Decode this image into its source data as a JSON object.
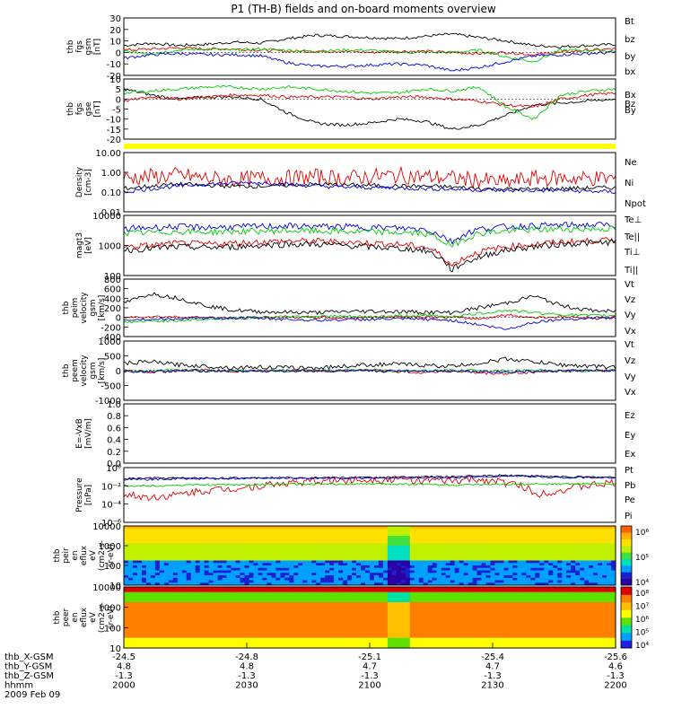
{
  "title": "P1  (TH-B) fields and on-board moments overview",
  "colors": {
    "black": "#000000",
    "red": "#e00000",
    "green": "#00cc00",
    "blue": "#0000e0",
    "yellow": "#ffff00"
  },
  "chart_data": [
    {
      "type": "line",
      "id": "fgs_gsm",
      "ylabel": [
        "thb",
        "fgs",
        "gsm",
        "[nT]"
      ],
      "ylim": [
        -20,
        30
      ],
      "yticks": [
        "30",
        "20",
        "10",
        "0",
        "-10",
        "-20"
      ],
      "series": [
        {
          "name": "Bt",
          "color": "#000000",
          "values": [
            6,
            8,
            6,
            7,
            9,
            8,
            12,
            15,
            14,
            13,
            12,
            14,
            16,
            13,
            10,
            6,
            5,
            6,
            7
          ]
        },
        {
          "name": "bz",
          "color": "#e00000",
          "values": [
            2,
            3,
            4,
            3,
            3,
            2,
            1,
            1,
            1,
            0,
            1,
            1,
            0,
            -1,
            0,
            -2,
            0,
            2,
            3
          ]
        },
        {
          "name": "by",
          "color": "#00cc00",
          "values": [
            1,
            -1,
            2,
            3,
            2,
            3,
            2,
            1,
            2,
            2,
            0,
            0,
            0,
            2,
            -4,
            -8,
            2,
            2,
            1
          ]
        },
        {
          "name": "bx",
          "color": "#0000e0",
          "values": [
            -5,
            -2,
            -1,
            -2,
            -2,
            -3,
            -9,
            -12,
            -12,
            -11,
            -10,
            -11,
            -16,
            -13,
            -8,
            -3,
            -2,
            -1,
            0
          ]
        }
      ]
    },
    {
      "type": "line",
      "id": "fgs_gse",
      "ylabel": [
        "thb",
        "fgs",
        "gse",
        "[nT]"
      ],
      "ylim": [
        -20,
        10
      ],
      "yticks": [
        "10",
        "5",
        "0",
        "-5",
        "-10",
        "-15",
        "-20"
      ],
      "series": [
        {
          "name": "Bx",
          "color": "#000000",
          "values": [
            5,
            2,
            0,
            1,
            1,
            0,
            -7,
            -12,
            -13,
            -12,
            -10,
            -11,
            -15,
            -13,
            -8,
            -3,
            -2,
            -1,
            0
          ]
        },
        {
          "name": "Bz",
          "color": "#e00000",
          "values": [
            -1,
            1,
            0,
            1,
            2,
            2,
            1,
            1,
            1,
            0,
            1,
            1,
            0,
            -1,
            -3,
            -4,
            0,
            2,
            3
          ]
        },
        {
          "name": "By",
          "color": "#00cc00",
          "values": [
            3,
            4,
            5,
            6,
            6,
            5,
            6,
            5,
            4,
            3,
            3,
            5,
            4,
            6,
            -4,
            -10,
            2,
            4,
            5
          ]
        }
      ]
    },
    {
      "type": "line",
      "id": "density",
      "ylabel": [
        "Density",
        "[cm-3]"
      ],
      "ylim": [
        0.01,
        10
      ],
      "scale": "log",
      "yticks": [
        "10.00",
        "1.00",
        "0.10",
        "0.01"
      ],
      "series": [
        {
          "name": "Ne",
          "color": "#e00000",
          "values": [
            0.5,
            0.6,
            0.7,
            0.5,
            0.4,
            0.5,
            0.5,
            0.6,
            0.5,
            0.6,
            0.7,
            0.6,
            0.5,
            0.4,
            0.3,
            0.5,
            0.5,
            0.5,
            0.5
          ]
        },
        {
          "name": "Ni",
          "color": "#000000",
          "values": [
            0.15,
            0.2,
            0.25,
            0.22,
            0.2,
            0.2,
            0.22,
            0.25,
            0.23,
            0.22,
            0.2,
            0.2,
            0.18,
            0.15,
            0.14,
            0.14,
            0.15,
            0.16,
            0.17
          ]
        },
        {
          "name": "Npot",
          "color": "#0000e0",
          "values": [
            0.1,
            0.15,
            0.2,
            0.25,
            0.28,
            0.3,
            0.25,
            0.2,
            0.18,
            0.17,
            0.16,
            0.15,
            0.14,
            0.13,
            0.12,
            0.12,
            0.12,
            0.11,
            0.1
          ]
        }
      ]
    },
    {
      "type": "line",
      "id": "magt3",
      "ylabel": [
        "magt3",
        "[eV]"
      ],
      "ylim": [
        100,
        10000
      ],
      "scale": "log",
      "yticks": [
        "10000",
        "1000",
        "100"
      ],
      "series": [
        {
          "name": "Te⊥",
          "color": "#e00000",
          "values": [
            900,
            1000,
            1200,
            1100,
            1200,
            1300,
            1400,
            1400,
            1300,
            1200,
            1100,
            900,
            200,
            600,
            900,
            1100,
            1300,
            1400,
            1500
          ]
        },
        {
          "name": "Te||",
          "color": "#000000",
          "values": [
            700,
            800,
            900,
            850,
            900,
            1000,
            1100,
            1100,
            1000,
            900,
            800,
            700,
            150,
            400,
            700,
            900,
            1100,
            1200,
            1300
          ]
        },
        {
          "name": "Ti⊥",
          "color": "#0000e0",
          "values": [
            3500,
            4000,
            4200,
            4000,
            4100,
            4300,
            4400,
            4300,
            4200,
            4000,
            3800,
            3500,
            1300,
            3500,
            4200,
            4500,
            4700,
            4800,
            4800
          ]
        },
        {
          "name": "Ti||",
          "color": "#00cc00",
          "values": [
            2500,
            2700,
            2900,
            2800,
            2900,
            3000,
            3100,
            3000,
            2900,
            2800,
            2700,
            2500,
            900,
            2500,
            3000,
            3300,
            3500,
            3500,
            3600
          ]
        }
      ]
    },
    {
      "type": "line",
      "id": "peim_velocity",
      "ylabel": [
        "thb",
        "peim",
        "velocity",
        "gsm",
        "[km/s]"
      ],
      "ylim": [
        -400,
        800
      ],
      "yticks": [
        "800",
        "600",
        "400",
        "200",
        "0",
        "-200",
        "-400"
      ],
      "series": [
        {
          "name": "Vt",
          "color": "#000000",
          "values": [
            300,
            500,
            400,
            250,
            150,
            120,
            110,
            100,
            120,
            130,
            120,
            110,
            100,
            200,
            300,
            450,
            250,
            150,
            120
          ]
        },
        {
          "name": "Vz",
          "color": "#e00000",
          "values": [
            0,
            20,
            10,
            0,
            -20,
            0,
            10,
            0,
            -10,
            0,
            20,
            10,
            0,
            -30,
            50,
            0,
            10,
            0,
            0
          ]
        },
        {
          "name": "Vy",
          "color": "#00cc00",
          "values": [
            -100,
            -80,
            -60,
            -40,
            -20,
            0,
            20,
            30,
            20,
            10,
            30,
            40,
            20,
            80,
            150,
            100,
            60,
            40,
            40
          ]
        },
        {
          "name": "Vx",
          "color": "#0000e0",
          "values": [
            -50,
            -40,
            -30,
            -20,
            -10,
            -20,
            -40,
            -60,
            -50,
            -40,
            -30,
            -40,
            -60,
            -150,
            -250,
            -100,
            -40,
            -20,
            -10
          ]
        }
      ]
    },
    {
      "type": "line",
      "id": "peem_velocity",
      "ylabel": [
        "thb",
        "peem",
        "velocity",
        "gsm",
        "[km/s]"
      ],
      "ylim": [
        -1000,
        1000
      ],
      "yticks": [
        "1000",
        "500",
        "0",
        "-500",
        "-1000"
      ],
      "series": [
        {
          "name": "Vt",
          "color": "#000000",
          "values": [
            250,
            300,
            200,
            150,
            100,
            120,
            100,
            90,
            150,
            200,
            220,
            180,
            150,
            250,
            400,
            300,
            200,
            150,
            120
          ]
        },
        {
          "name": "Vz",
          "color": "#e00000",
          "values": [
            0,
            -50,
            0,
            20,
            -20,
            0,
            10,
            -10,
            0,
            20,
            -30,
            -60,
            0,
            -80,
            -100,
            -50,
            0,
            10,
            0
          ]
        },
        {
          "name": "Vy",
          "color": "#00cc00",
          "values": [
            -20,
            0,
            20,
            -10,
            0,
            10,
            0,
            -10,
            0,
            10,
            0,
            -10,
            0,
            10,
            -20,
            0,
            10,
            0,
            0
          ]
        },
        {
          "name": "Vx",
          "color": "#0000e0",
          "values": [
            -30,
            -20,
            -10,
            0,
            -10,
            -20,
            -10,
            0,
            -10,
            -20,
            -10,
            0,
            -10,
            -20,
            -40,
            -20,
            -10,
            0,
            0
          ]
        }
      ]
    },
    {
      "type": "line",
      "id": "e_vxb",
      "ylabel": [
        "E=-VxB",
        "[mV/m]"
      ],
      "ylim": [
        0,
        1
      ],
      "yticks": [
        "1.0",
        "0.8",
        "0.6",
        "0.4",
        "0.2",
        "0.0"
      ],
      "series": [
        {
          "name": "Ez",
          "color": "#e00000",
          "values": []
        },
        {
          "name": "Ey",
          "color": "#00cc00",
          "values": []
        },
        {
          "name": "Ex",
          "color": "#0000e0",
          "values": []
        }
      ]
    },
    {
      "type": "line",
      "id": "pressure",
      "ylabel": [
        "Pressure",
        "[nPa]"
      ],
      "ylim": [
        1e-06,
        1
      ],
      "scale": "log",
      "yticks": [
        "10⁰",
        "10⁻²",
        "10⁻⁴",
        "10⁻⁶"
      ],
      "series": [
        {
          "name": "Pt",
          "color": "#000000",
          "values": [
            0.06,
            0.07,
            0.07,
            0.07,
            0.07,
            0.08,
            0.08,
            0.08,
            0.08,
            0.08,
            0.09,
            0.1,
            0.1,
            0.12,
            0.15,
            0.12,
            0.1,
            0.09,
            0.09
          ]
        },
        {
          "name": "Pb",
          "color": "#e00000",
          "values": [
            0.001,
            0.0005,
            0.001,
            0.003,
            0.005,
            0.01,
            0.02,
            0.03,
            0.04,
            0.05,
            0.05,
            0.04,
            0.03,
            0.05,
            0.02,
            0.001,
            0.003,
            0.01,
            0.02
          ]
        },
        {
          "name": "Pe",
          "color": "#00cc00",
          "values": [
            0.01,
            0.01,
            0.012,
            0.013,
            0.013,
            0.014,
            0.015,
            0.015,
            0.015,
            0.016,
            0.016,
            0.015,
            0.012,
            0.013,
            0.014,
            0.015,
            0.016,
            0.016,
            0.017
          ]
        },
        {
          "name": "Pi",
          "color": "#0000e0",
          "values": [
            0.05,
            0.05,
            0.06,
            0.06,
            0.06,
            0.07,
            0.07,
            0.07,
            0.07,
            0.07,
            0.08,
            0.08,
            0.08,
            0.1,
            0.12,
            0.1,
            0.08,
            0.08,
            0.08
          ]
        }
      ]
    },
    {
      "type": "heatmap",
      "id": "peir_eflux",
      "ylabel": [
        "thb",
        "peir",
        "en",
        "eflux",
        "eV",
        "(cm2-s-",
        "sr-eV)"
      ],
      "ylim": [
        10,
        10000
      ],
      "scale": "log",
      "yticks": [
        "10000",
        "1000",
        "100",
        "10"
      ],
      "colorbar_ticks": [
        "10⁶",
        "10⁵",
        "10⁴"
      ]
    },
    {
      "type": "heatmap",
      "id": "peer_eflux",
      "ylabel": [
        "thb",
        "peer",
        "en",
        "eflux",
        "eV",
        "(cm2-s-",
        "sr-eV)"
      ],
      "ylim": [
        10,
        10000
      ],
      "scale": "log",
      "yticks": [
        "10000",
        "1000",
        "100",
        "10"
      ],
      "colorbar_ticks": [
        "10⁸",
        "10⁷",
        "10⁶",
        "10⁵",
        "10⁴"
      ]
    }
  ],
  "xaxis": {
    "rows": [
      {
        "label": "thb_X-GSM",
        "values": [
          "-24.5",
          "-24.8",
          "-25.1",
          "-25.4",
          "-25.6"
        ]
      },
      {
        "label": "thb_Y-GSM",
        "values": [
          "4.8",
          "4.8",
          "4.7",
          "4.7",
          "4.6"
        ]
      },
      {
        "label": "thb_Z-GSM",
        "values": [
          "-1.3",
          "-1.3",
          "-1.3",
          "-1.3",
          "-1.3"
        ]
      },
      {
        "label": "hhmm",
        "values": [
          "2000",
          "2030",
          "2100",
          "2130",
          "2200"
        ]
      }
    ],
    "date": "2009 Feb 09"
  }
}
